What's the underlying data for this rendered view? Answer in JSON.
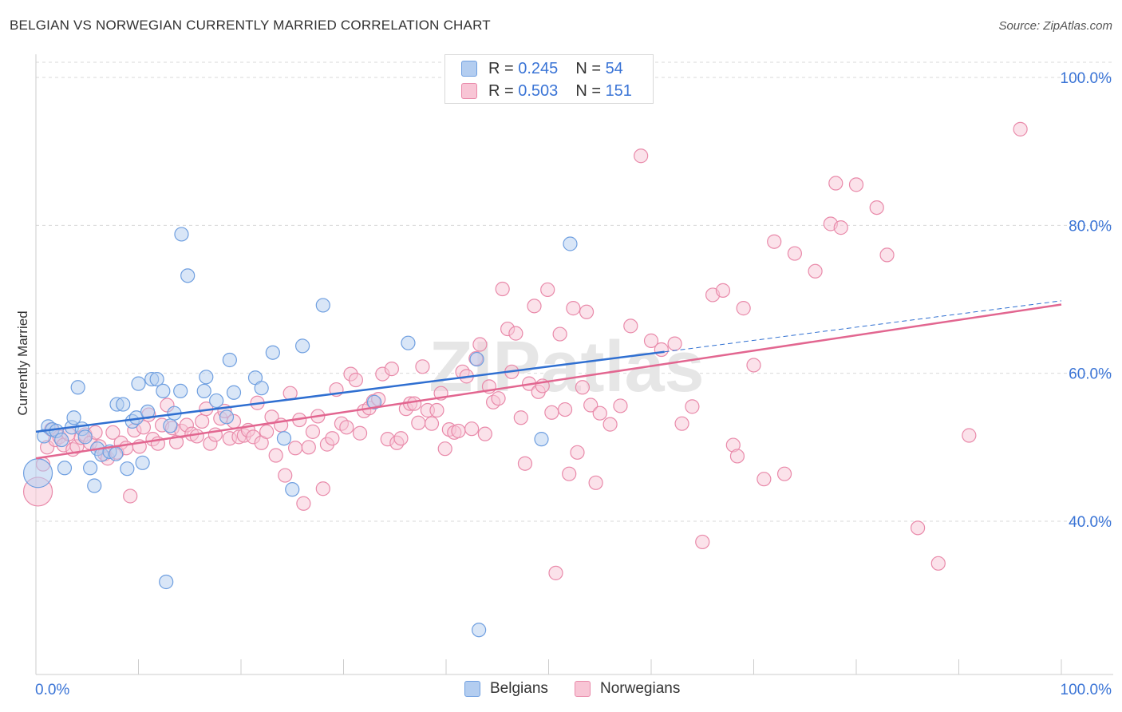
{
  "title": "BELGIAN VS NORWEGIAN CURRENTLY MARRIED CORRELATION CHART",
  "source": "Source: ZipAtlas.com",
  "watermark": "ZIPatlas",
  "legend_top": [
    {
      "r_label": "R =",
      "r_value": "0.245",
      "n_label": "N =",
      "n_value": "54"
    },
    {
      "r_label": "R =",
      "r_value": "0.503",
      "n_label": "N =",
      "n_value": "151"
    }
  ],
  "legend_bottom": [
    "Belgians",
    "Norwegians"
  ],
  "colors": {
    "belgian_fill": "#b3cdf0",
    "belgian_stroke": "#6f9fe0",
    "belgian_line": "#2f6fd1",
    "norwegian_fill": "#f8c5d5",
    "norwegian_stroke": "#e98aaa",
    "norwegian_line": "#e26690",
    "tick_label": "#3a74d6",
    "grid": "#d9d9d9"
  },
  "chart_data": {
    "type": "scatter",
    "title": "BELGIAN VS NORWEGIAN CURRENTLY MARRIED CORRELATION CHART",
    "xlabel": "",
    "ylabel": "Currently Married",
    "xlim": [
      0,
      100
    ],
    "ylim": [
      20,
      103
    ],
    "x_tick_labels": [
      "0.0%",
      "100.0%"
    ],
    "y_tick_labels": [
      "100.0%",
      "80.0%",
      "60.0%",
      "40.0%"
    ],
    "y_ticks": [
      100,
      80,
      60,
      40
    ],
    "grid": true,
    "legend_position": "top-center",
    "series": [
      {
        "name": "Belgians",
        "r": 0.245,
        "n": 54,
        "trend": {
          "x": [
            0,
            61.3
          ],
          "y": [
            52.1,
            62.9
          ]
        },
        "trend_extension": {
          "x": [
            61.3,
            100
          ],
          "y": [
            62.9,
            69.8
          ]
        },
        "points": [
          [
            0.2,
            46.5
          ],
          [
            0.8,
            51.5
          ],
          [
            1.2,
            52.8
          ],
          [
            1.6,
            52.4
          ],
          [
            2.0,
            52.2
          ],
          [
            2.5,
            51.0
          ],
          [
            2.8,
            47.2
          ],
          [
            3.5,
            52.7
          ],
          [
            3.7,
            54.0
          ],
          [
            4.1,
            58.1
          ],
          [
            4.5,
            52.5
          ],
          [
            4.8,
            51.4
          ],
          [
            5.3,
            47.2
          ],
          [
            5.7,
            44.8
          ],
          [
            6.0,
            49.8
          ],
          [
            6.4,
            49.0
          ],
          [
            7.2,
            49.4
          ],
          [
            7.8,
            49.1
          ],
          [
            7.9,
            55.8
          ],
          [
            8.5,
            55.8
          ],
          [
            8.9,
            47.1
          ],
          [
            9.4,
            53.5
          ],
          [
            9.8,
            54.0
          ],
          [
            10.0,
            58.6
          ],
          [
            10.4,
            47.9
          ],
          [
            10.9,
            54.8
          ],
          [
            11.3,
            59.2
          ],
          [
            11.8,
            59.2
          ],
          [
            12.4,
            57.6
          ],
          [
            12.7,
            31.8
          ],
          [
            13.1,
            52.9
          ],
          [
            13.5,
            54.6
          ],
          [
            14.1,
            57.6
          ],
          [
            14.2,
            78.8
          ],
          [
            14.8,
            73.2
          ],
          [
            16.4,
            57.6
          ],
          [
            16.6,
            59.5
          ],
          [
            17.6,
            56.3
          ],
          [
            18.6,
            54.1
          ],
          [
            18.9,
            61.8
          ],
          [
            19.3,
            57.4
          ],
          [
            21.4,
            59.4
          ],
          [
            22.0,
            58.0
          ],
          [
            23.1,
            62.8
          ],
          [
            24.2,
            51.2
          ],
          [
            25.0,
            44.3
          ],
          [
            26.0,
            63.7
          ],
          [
            28.0,
            69.2
          ],
          [
            33.0,
            56.1
          ],
          [
            36.3,
            64.1
          ],
          [
            43.0,
            61.9
          ],
          [
            43.2,
            25.3
          ],
          [
            49.3,
            51.1
          ],
          [
            52.1,
            77.5
          ]
        ]
      },
      {
        "name": "Norwegians",
        "r": 0.503,
        "n": 151,
        "trend": {
          "x": [
            0,
            100
          ],
          "y": [
            48.5,
            69.3
          ]
        },
        "points": [
          [
            0.2,
            44.0
          ],
          [
            0.7,
            47.7
          ],
          [
            1.1,
            50.0
          ],
          [
            1.5,
            52.4
          ],
          [
            1.9,
            51.0
          ],
          [
            2.3,
            51.4
          ],
          [
            2.7,
            50.3
          ],
          [
            3.2,
            51.8
          ],
          [
            3.6,
            49.7
          ],
          [
            4.0,
            50.1
          ],
          [
            4.4,
            51.3
          ],
          [
            4.8,
            51.7
          ],
          [
            5.3,
            50.6
          ],
          [
            5.8,
            52.0
          ],
          [
            6.2,
            50.1
          ],
          [
            6.7,
            49.1
          ],
          [
            7.0,
            48.5
          ],
          [
            7.5,
            52.0
          ],
          [
            7.9,
            49.3
          ],
          [
            8.3,
            50.6
          ],
          [
            8.8,
            49.9
          ],
          [
            9.2,
            43.4
          ],
          [
            9.6,
            52.3
          ],
          [
            10.1,
            50.1
          ],
          [
            10.5,
            52.7
          ],
          [
            11.0,
            54.4
          ],
          [
            11.4,
            51.1
          ],
          [
            11.9,
            50.5
          ],
          [
            12.3,
            53.0
          ],
          [
            12.8,
            55.7
          ],
          [
            13.3,
            52.6
          ],
          [
            13.7,
            50.7
          ],
          [
            14.2,
            52.2
          ],
          [
            14.7,
            53.0
          ],
          [
            15.2,
            51.8
          ],
          [
            15.7,
            51.5
          ],
          [
            16.2,
            53.5
          ],
          [
            16.6,
            55.2
          ],
          [
            17.0,
            50.5
          ],
          [
            17.5,
            51.7
          ],
          [
            18.0,
            53.9
          ],
          [
            18.4,
            54.9
          ],
          [
            18.9,
            51.2
          ],
          [
            19.3,
            53.5
          ],
          [
            19.8,
            51.4
          ],
          [
            20.3,
            51.6
          ],
          [
            20.7,
            52.3
          ],
          [
            21.2,
            51.4
          ],
          [
            21.6,
            56.0
          ],
          [
            22.0,
            50.6
          ],
          [
            22.5,
            52.1
          ],
          [
            23.0,
            54.1
          ],
          [
            23.4,
            48.9
          ],
          [
            23.9,
            53.0
          ],
          [
            24.3,
            46.2
          ],
          [
            24.8,
            57.3
          ],
          [
            25.3,
            49.9
          ],
          [
            25.7,
            53.7
          ],
          [
            26.1,
            42.4
          ],
          [
            26.6,
            50.0
          ],
          [
            27.0,
            52.1
          ],
          [
            27.5,
            54.2
          ],
          [
            28.0,
            44.4
          ],
          [
            28.4,
            50.4
          ],
          [
            28.9,
            51.2
          ],
          [
            29.3,
            57.8
          ],
          [
            29.8,
            53.2
          ],
          [
            30.3,
            52.7
          ],
          [
            30.7,
            59.9
          ],
          [
            31.2,
            59.1
          ],
          [
            31.6,
            51.9
          ],
          [
            32.0,
            54.9
          ],
          [
            32.5,
            55.3
          ],
          [
            32.9,
            56.2
          ],
          [
            33.4,
            56.5
          ],
          [
            33.8,
            59.9
          ],
          [
            34.3,
            51.1
          ],
          [
            34.7,
            60.6
          ],
          [
            35.2,
            50.6
          ],
          [
            35.6,
            51.2
          ],
          [
            36.1,
            55.2
          ],
          [
            36.5,
            55.9
          ],
          [
            36.9,
            55.9
          ],
          [
            37.3,
            53.3
          ],
          [
            37.7,
            60.9
          ],
          [
            38.2,
            55.0
          ],
          [
            38.6,
            53.2
          ],
          [
            39.1,
            55.0
          ],
          [
            39.5,
            57.3
          ],
          [
            39.9,
            49.8
          ],
          [
            40.3,
            52.4
          ],
          [
            40.8,
            52.0
          ],
          [
            41.2,
            52.2
          ],
          [
            41.6,
            60.2
          ],
          [
            42.0,
            59.6
          ],
          [
            42.5,
            52.5
          ],
          [
            42.9,
            62.0
          ],
          [
            43.3,
            63.9
          ],
          [
            43.8,
            51.8
          ],
          [
            44.2,
            58.2
          ],
          [
            44.6,
            56.1
          ],
          [
            45.1,
            56.6
          ],
          [
            45.5,
            71.4
          ],
          [
            46.0,
            66.0
          ],
          [
            46.4,
            60.2
          ],
          [
            46.8,
            65.4
          ],
          [
            47.3,
            54.0
          ],
          [
            47.7,
            47.8
          ],
          [
            48.1,
            58.6
          ],
          [
            48.6,
            69.1
          ],
          [
            49.0,
            57.5
          ],
          [
            49.4,
            58.3
          ],
          [
            49.9,
            71.3
          ],
          [
            50.3,
            54.7
          ],
          [
            50.7,
            33.0
          ],
          [
            51.1,
            65.3
          ],
          [
            51.6,
            55.1
          ],
          [
            52.0,
            46.4
          ],
          [
            52.4,
            68.8
          ],
          [
            52.8,
            49.3
          ],
          [
            53.3,
            58.1
          ],
          [
            53.7,
            68.3
          ],
          [
            54.1,
            55.7
          ],
          [
            54.6,
            45.2
          ],
          [
            55.0,
            54.6
          ],
          [
            56.0,
            53.1
          ],
          [
            57.0,
            55.6
          ],
          [
            58.0,
            66.4
          ],
          [
            59.0,
            89.4
          ],
          [
            60.0,
            64.4
          ],
          [
            61.0,
            63.2
          ],
          [
            62.3,
            64.0
          ],
          [
            63.0,
            53.2
          ],
          [
            64.0,
            55.5
          ],
          [
            65.0,
            37.2
          ],
          [
            66.0,
            70.6
          ],
          [
            67.0,
            71.2
          ],
          [
            68.0,
            50.3
          ],
          [
            68.4,
            48.8
          ],
          [
            69.0,
            68.8
          ],
          [
            70.0,
            61.1
          ],
          [
            71.0,
            45.7
          ],
          [
            72.0,
            77.8
          ],
          [
            73.0,
            46.4
          ],
          [
            74.0,
            76.2
          ],
          [
            76.0,
            73.8
          ],
          [
            77.5,
            80.2
          ],
          [
            78.0,
            85.7
          ],
          [
            78.5,
            79.7
          ],
          [
            80.0,
            85.5
          ],
          [
            82.0,
            82.4
          ],
          [
            83.0,
            76.0
          ],
          [
            86.0,
            39.1
          ],
          [
            88.0,
            34.3
          ],
          [
            91.0,
            51.6
          ],
          [
            96.0,
            93.0
          ]
        ]
      }
    ]
  }
}
